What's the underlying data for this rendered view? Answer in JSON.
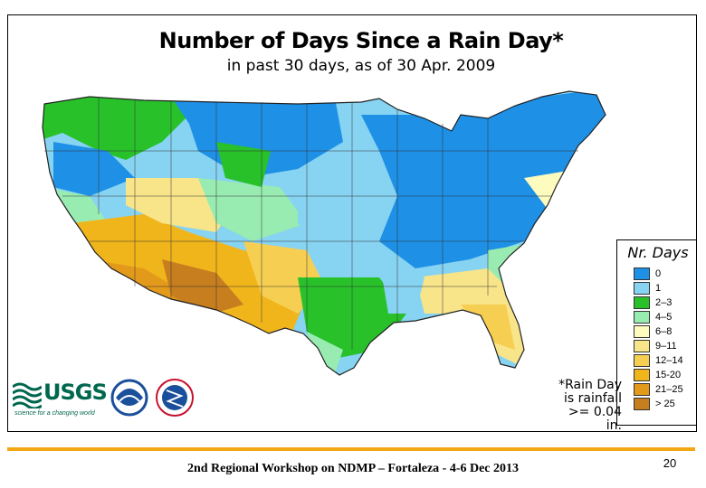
{
  "title": "Number of Days Since a Rain Day*",
  "subtitle": "in past 30 days, as of  30 Apr. 2009",
  "legend": {
    "title": "Nr. Days",
    "items": [
      {
        "label": "0",
        "color": "#1e90e6"
      },
      {
        "label": "1",
        "color": "#87d3f2"
      },
      {
        "label": "2–3",
        "color": "#28c12a"
      },
      {
        "label": "4–5",
        "color": "#98ecb2"
      },
      {
        "label": "6–8",
        "color": "#fdfbbe"
      },
      {
        "label": "9–11",
        "color": "#f8e58a"
      },
      {
        "label": "12–14",
        "color": "#f6cf52"
      },
      {
        "label": "15-20",
        "color": "#f1b51c"
      },
      {
        "label": "21–25",
        "color": "#e39a1a"
      },
      {
        "label": "> 25",
        "color": "#c77e1f"
      }
    ]
  },
  "note": {
    "line1": "*Rain Day",
    "line2": "is rainfall",
    "line3": ">= 0.04 in."
  },
  "logos": {
    "usgs_word": "USGS",
    "usgs_tagline": "science for a changing world"
  },
  "footer": {
    "text": "2nd Regional Workshop on NDMP – Fortaleza - 4-6 Dec 2013",
    "page": "20"
  }
}
